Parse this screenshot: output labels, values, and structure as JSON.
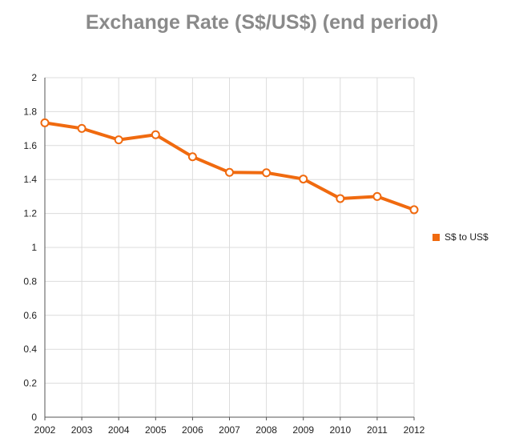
{
  "chart_data": {
    "type": "line",
    "title": "Exchange Rate (S$/US$) (end period)",
    "xlabel": "",
    "ylabel": "",
    "categories": [
      "2002",
      "2003",
      "2004",
      "2005",
      "2006",
      "2007",
      "2008",
      "2009",
      "2010",
      "2011",
      "2012"
    ],
    "series": [
      {
        "name": "S$ to US$",
        "color": "#f06a0f",
        "values": [
          1.734,
          1.701,
          1.634,
          1.664,
          1.534,
          1.442,
          1.44,
          1.403,
          1.288,
          1.3,
          1.222
        ]
      }
    ],
    "ylim": [
      0,
      2
    ],
    "yticks": [
      "0",
      "0.2",
      "0.4",
      "0.6",
      "0.8",
      "1",
      "1.2",
      "1.4",
      "1.6",
      "1.8",
      "2"
    ],
    "grid": true,
    "legend_position": "right"
  }
}
